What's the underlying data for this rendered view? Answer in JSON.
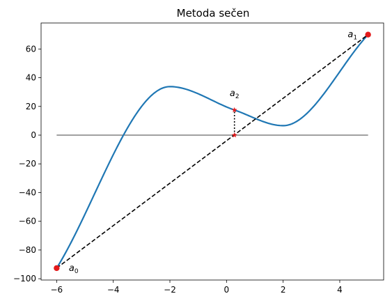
{
  "chart_data": {
    "type": "line",
    "title": "Metoda sečen",
    "xlabel": "",
    "ylabel": "",
    "xlim": [
      -6.55,
      5.55
    ],
    "ylim": [
      -100.9,
      78.1
    ],
    "xticks": [
      -6,
      -4,
      -2,
      0,
      2,
      4
    ],
    "yticks": [
      -100,
      -80,
      -60,
      -40,
      -20,
      0,
      20,
      40,
      60
    ],
    "grid": false,
    "function": {
      "x_start": -6,
      "x_end": 5,
      "color": "#1f77b4",
      "points": [
        [
          -6,
          -92.6
        ],
        [
          -5.5,
          -62.5
        ],
        [
          -5,
          -37.9
        ],
        [
          -4.5,
          -18.3
        ],
        [
          -4,
          -3.2
        ],
        [
          -3.5,
          8.0
        ],
        [
          -3,
          15.6
        ],
        [
          -2.5,
          20.1
        ],
        [
          -2,
          21.6
        ],
        [
          -1.5,
          20.3
        ],
        [
          -1,
          17.0
        ],
        [
          -0.5,
          12.4
        ],
        [
          0,
          7.5
        ],
        [
          0.5,
          2.9
        ],
        [
          1,
          -1.0
        ],
        [
          1.5,
          -3.2
        ],
        [
          2,
          -3.3
        ],
        [
          2.5,
          -0.4
        ],
        [
          3,
          5.6
        ],
        [
          3.5,
          15.3
        ],
        [
          4,
          30.0
        ],
        [
          4.5,
          49.9
        ],
        [
          5,
          70.0
        ]
      ]
    },
    "curve_anchors": {
      "x": [
        -6,
        -2,
        0.28,
        2,
        5
      ],
      "y": [
        -92.6,
        33.8,
        17.5,
        6.6,
        70.0
      ]
    },
    "zero_line": {
      "x": [
        -6,
        5
      ],
      "y": 0,
      "color": "#000000"
    },
    "secant": {
      "x": [
        -6,
        5
      ],
      "y": [
        -92.6,
        70.0
      ],
      "color": "#000000",
      "style": "dashed"
    },
    "vertical_connector": {
      "x": 0.28,
      "y": [
        0,
        17.5
      ],
      "style": "dotted"
    },
    "endpoints": [
      {
        "x": -6,
        "y": -92.6,
        "color": "#e31a1c",
        "marker": "circle"
      },
      {
        "x": 5,
        "y": 70.0,
        "color": "#e31a1c",
        "marker": "circle"
      }
    ],
    "star_points": [
      {
        "x": 0.28,
        "y": 17.5,
        "color": "#e31a1c",
        "marker": "star"
      },
      {
        "x": 0.28,
        "y": 0,
        "color": "#e31a1c",
        "marker": "star"
      }
    ],
    "annotations": [
      {
        "base": "a",
        "sub": "0",
        "x": -5.4,
        "y": -92.6
      },
      {
        "base": "a",
        "sub": "1",
        "x": 4.45,
        "y": 70.0
      },
      {
        "base": "a",
        "sub": "2",
        "x": 0.28,
        "y": 29.0
      }
    ]
  }
}
